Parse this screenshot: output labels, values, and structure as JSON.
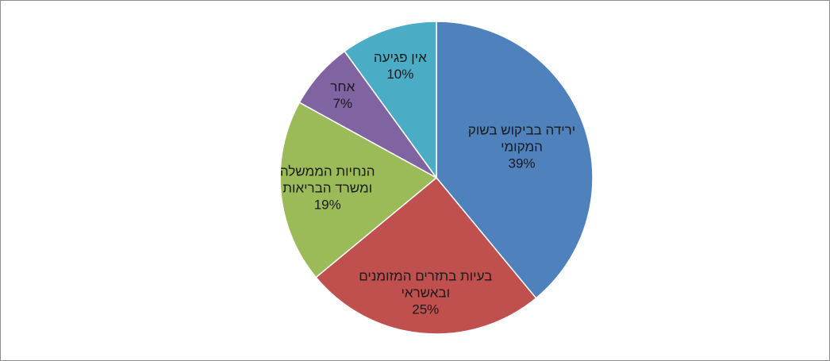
{
  "chart_data": {
    "type": "pie",
    "categories": [
      "ירידה בביקוש בשוק המקומי",
      "בעיות בתזרים המזומנים ובאשראי",
      "הנחיות הממשלה ומשרד הבריאות",
      "אחר",
      "אין פגיעה"
    ],
    "values": [
      39,
      25,
      19,
      7,
      10
    ],
    "value_labels": [
      "39%",
      "25%",
      "19%",
      "7%",
      "10%"
    ],
    "colors": [
      "#4f81bd",
      "#c0504d",
      "#9bbb59",
      "#8064a2",
      "#4bacc6"
    ]
  }
}
